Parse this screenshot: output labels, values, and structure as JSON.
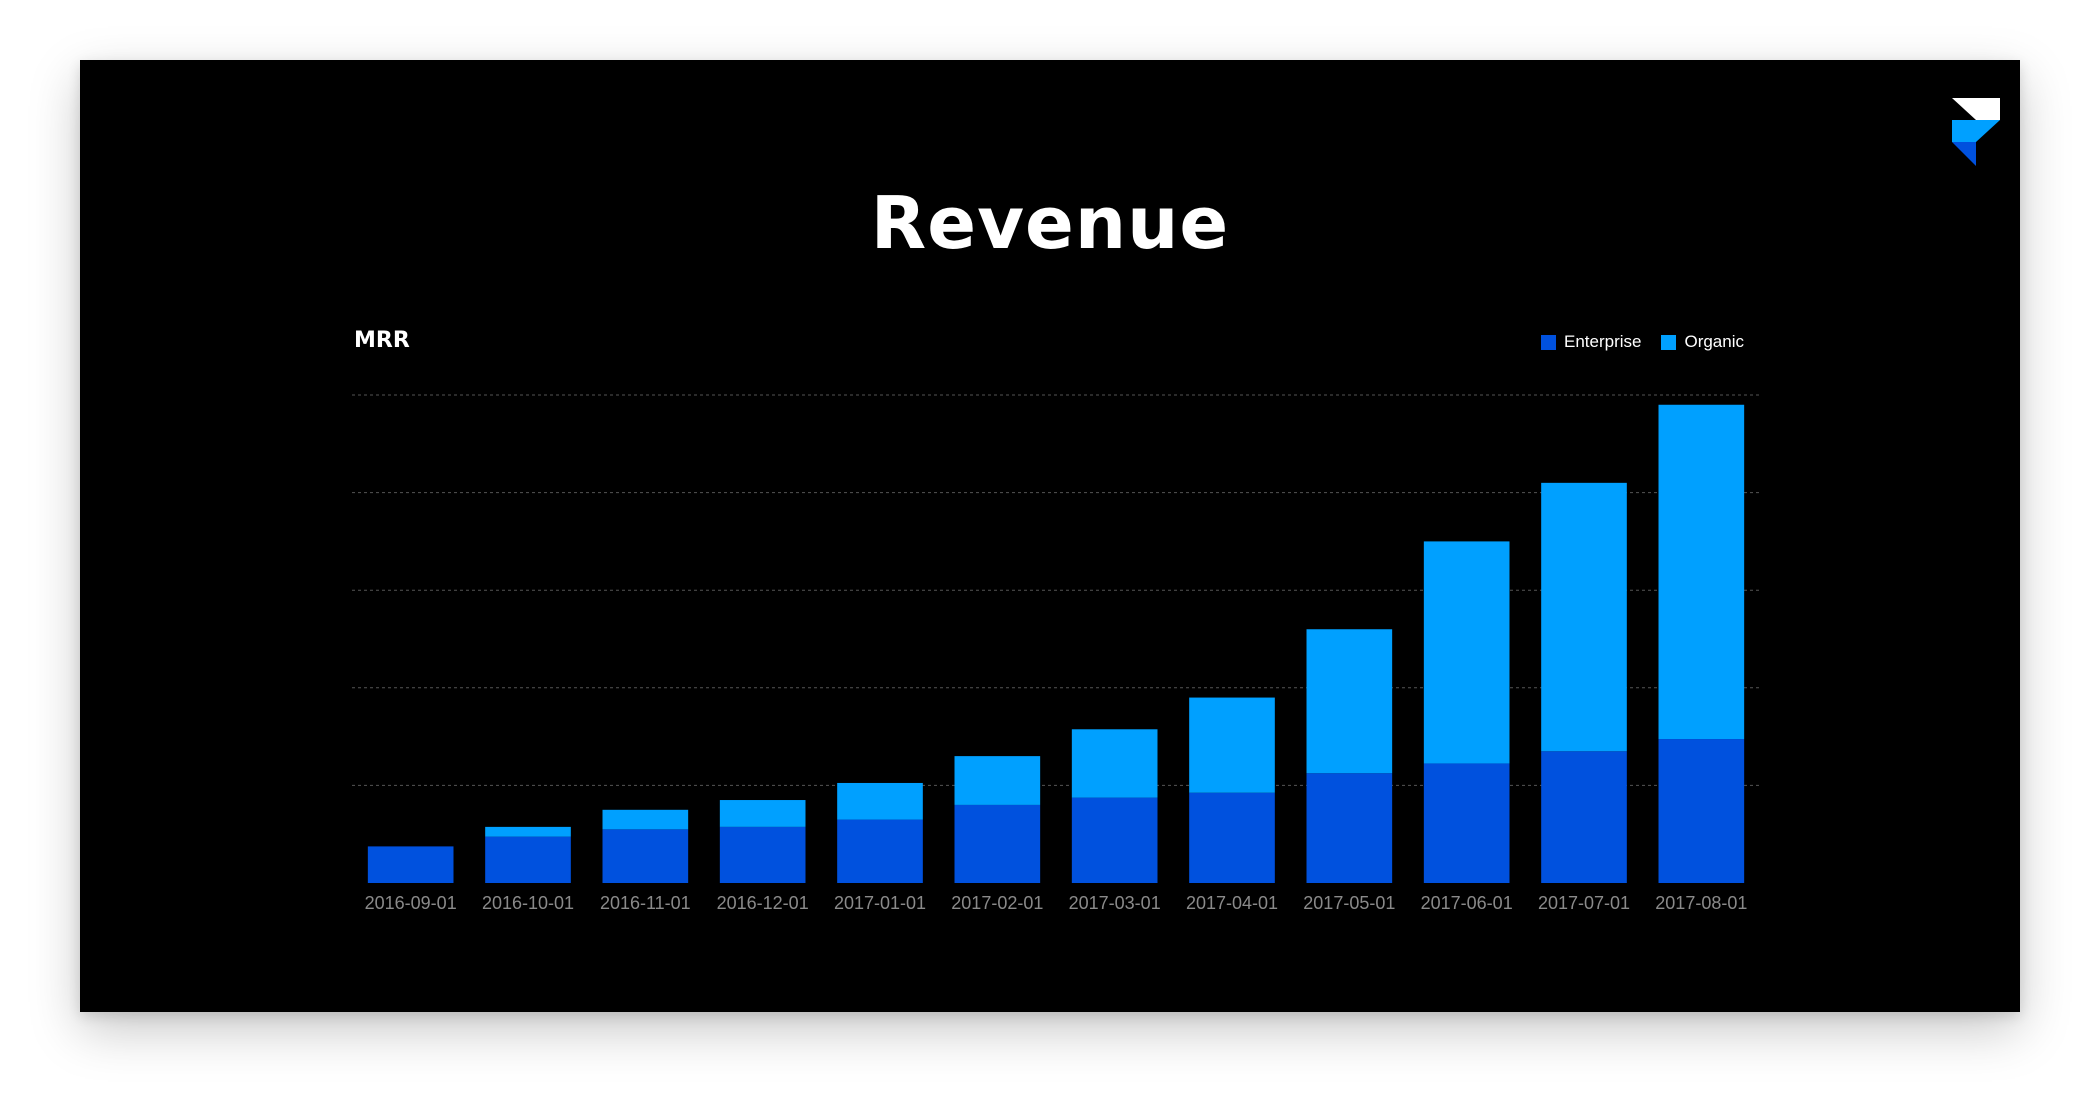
{
  "slide": {
    "title": "Revenue",
    "logo_icon": "framer-logo-icon"
  },
  "chart_data": {
    "type": "bar",
    "stacked": true,
    "title": "MRR",
    "legend_position": "top-right",
    "grid": true,
    "categories": [
      "2016-09-01",
      "2016-10-01",
      "2016-11-01",
      "2016-12-01",
      "2017-01-01",
      "2017-02-01",
      "2017-03-01",
      "2017-04-01",
      "2017-05-01",
      "2017-06-01",
      "2017-07-01",
      "2017-08-01"
    ],
    "series": [
      {
        "name": "Enterprise",
        "color": "#0051de",
        "values": [
          7.5,
          9.5,
          11,
          11.5,
          13,
          16,
          17.5,
          18.5,
          22.5,
          24.5,
          27,
          29.5
        ]
      },
      {
        "name": "Organic",
        "color": "#00a0ff",
        "values": [
          0,
          2,
          4,
          5.5,
          7.5,
          10,
          14,
          19.5,
          29.5,
          45.5,
          55,
          68.5
        ]
      }
    ],
    "ylim": [
      0,
      100
    ],
    "colors": {
      "enterprise": "#0051de",
      "organic": "#00a0ff",
      "grid": "#555555",
      "tick_label": "#8a8a8a",
      "background": "#000000"
    }
  }
}
